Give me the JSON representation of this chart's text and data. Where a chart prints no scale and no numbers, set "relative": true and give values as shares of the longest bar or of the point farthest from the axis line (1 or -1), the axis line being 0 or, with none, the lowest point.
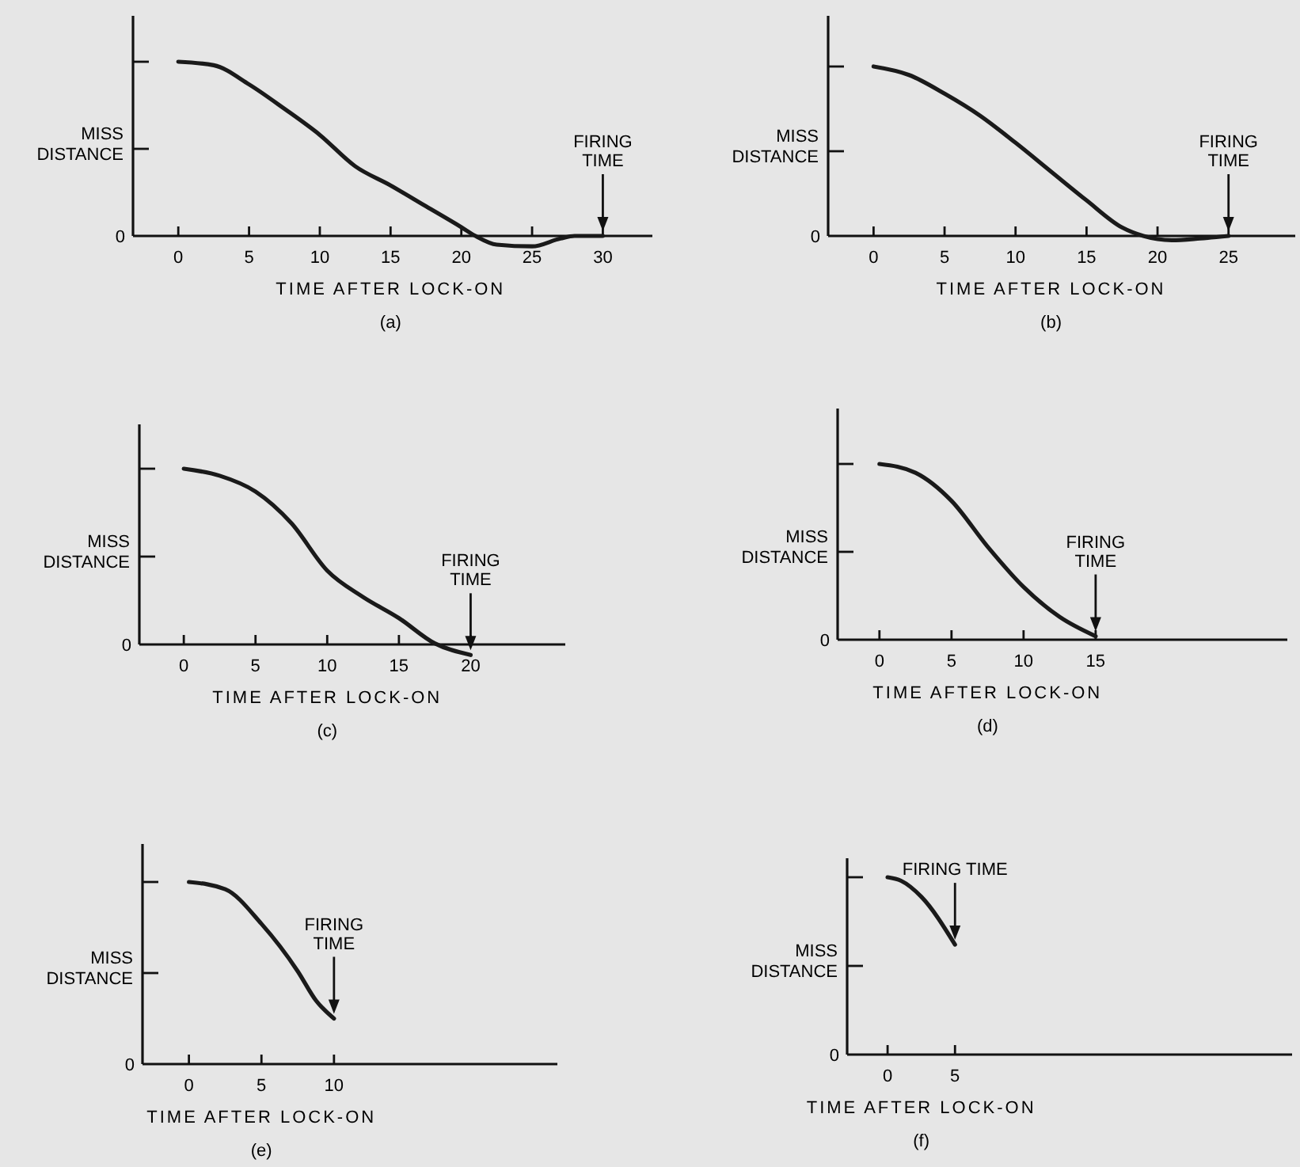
{
  "chart_data": [
    {
      "type": "line",
      "title": "(a)",
      "xlabel": "TIME AFTER LOCK-ON",
      "ylabel": "MISS DISTANCE",
      "relative": true,
      "xlim": [
        -3.2,
        33.5
      ],
      "xticks": [
        0,
        5,
        10,
        15,
        20,
        25,
        30
      ],
      "x": [
        0,
        2.5,
        5,
        7.5,
        10,
        12.5,
        15,
        17.5,
        20,
        21,
        22.5,
        25,
        27,
        28,
        30
      ],
      "series": [
        {
          "color": "#1a1a1a",
          "values": [
            1,
            0.98,
            0.87,
            0.73,
            0.58,
            0.4,
            0.29,
            0.17,
            0.05,
            0,
            -0.05,
            -0.06,
            -0.015,
            0,
            0
          ]
        }
      ],
      "annotations": [
        "0",
        "FIRING\nTIME"
      ]
    },
    {
      "type": "line",
      "title": "(b)",
      "xlabel": "TIME AFTER LOCK-ON",
      "ylabel": "MISS DISTANCE",
      "relative": true,
      "xlim": [
        -3.2,
        29.7
      ],
      "xticks": [
        0,
        5,
        10,
        15,
        20,
        25
      ],
      "x": [
        0,
        2.5,
        5,
        7.5,
        10,
        12.5,
        15,
        17.5,
        19,
        21,
        23,
        25
      ],
      "series": [
        {
          "color": "#1a1a1a",
          "values": [
            1,
            0.95,
            0.84,
            0.71,
            0.55,
            0.38,
            0.21,
            0.05,
            0,
            -0.025,
            -0.015,
            0
          ]
        }
      ],
      "annotations": [
        "0",
        "FIRING\nTIME"
      ]
    },
    {
      "type": "line",
      "title": "(c)",
      "xlabel": "TIME AFTER LOCK-ON",
      "ylabel": "MISS DISTANCE",
      "relative": true,
      "xlim": [
        -3.1,
        26.6
      ],
      "xticks": [
        0,
        5,
        10,
        15,
        20
      ],
      "x": [
        0,
        2.5,
        5,
        7.5,
        10,
        12.5,
        15,
        17.5,
        20
      ],
      "series": [
        {
          "color": "#1a1a1a",
          "values": [
            1,
            0.96,
            0.87,
            0.69,
            0.42,
            0.27,
            0.15,
            0.006,
            -0.06
          ]
        }
      ],
      "annotations": [
        "0",
        "FIRING\nTIME"
      ]
    },
    {
      "type": "line",
      "title": "(d)",
      "xlabel": "TIME AFTER LOCK-ON",
      "ylabel": "MISS DISTANCE",
      "relative": true,
      "xlim": [
        -2.9,
        28.3
      ],
      "xticks": [
        0,
        5,
        10,
        15
      ],
      "x": [
        0,
        2.5,
        5,
        7.5,
        10,
        12.5,
        15
      ],
      "series": [
        {
          "color": "#1a1a1a",
          "values": [
            1,
            0.95,
            0.79,
            0.53,
            0.3,
            0.13,
            0.02
          ]
        }
      ],
      "annotations": [
        "0",
        "FIRING\nTIME"
      ]
    },
    {
      "type": "line",
      "title": "(e)",
      "xlabel": "TIME AFTER LOCK-ON",
      "ylabel": "MISS DISTANCE",
      "relative": true,
      "xlim": [
        -3.2,
        25.4
      ],
      "xticks": [
        0,
        5,
        10
      ],
      "x": [
        0,
        2.5,
        5,
        7.5,
        8.75,
        10
      ],
      "series": [
        {
          "color": "#1a1a1a",
          "values": [
            1,
            0.96,
            0.77,
            0.51,
            0.35,
            0.25
          ]
        }
      ],
      "annotations": [
        "0",
        "FIRING\nTIME"
      ]
    },
    {
      "type": "line",
      "title": "(f)",
      "xlabel": "TIME AFTER LOCK-ON",
      "ylabel": "MISS DISTANCE",
      "relative": true,
      "xlim": [
        -3,
        30
      ],
      "xticks": [
        0,
        5
      ],
      "x": [
        0,
        1,
        2.5,
        5
      ],
      "series": [
        {
          "color": "#1a1a1a",
          "values": [
            1,
            0.98,
            0.89,
            0.62
          ]
        }
      ],
      "annotations": [
        "0",
        "FIRING TIME"
      ]
    }
  ]
}
